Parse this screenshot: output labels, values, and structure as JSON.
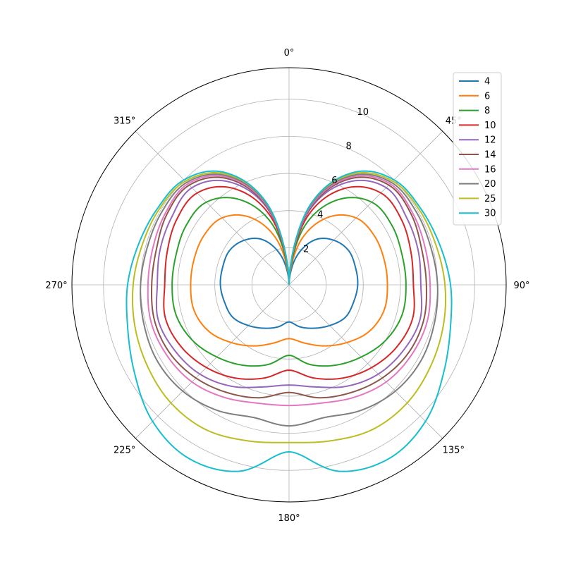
{
  "chart_data": {
    "type": "line",
    "projection": "polar",
    "theta_zero": "north",
    "theta_direction": "clockwise",
    "theta_ticks": [
      "0°",
      "45°",
      "90°",
      "135°",
      "180°",
      "225°",
      "270°",
      "315°"
    ],
    "r_ticks": [
      2,
      4,
      6,
      8,
      10
    ],
    "r_tick_labels": [
      "2",
      "4",
      "6",
      "8",
      "10"
    ],
    "rlim": [
      0,
      11.7
    ],
    "grid": true,
    "legend": {
      "placement": "top-right"
    },
    "theta": [
      0,
      15,
      30,
      45,
      60,
      75,
      90,
      105,
      120,
      135,
      150,
      165,
      180
    ],
    "series": [
      {
        "name": "4",
        "color": "#1f77b4",
        "r": [
          0,
          1.6,
          2.8,
          3.4,
          3.7,
          3.7,
          3.7,
          3.6,
          3.5,
          3.1,
          2.7,
          2.35,
          2.0
        ]
      },
      {
        "name": "6",
        "color": "#ff7f0e",
        "r": [
          0,
          2.5,
          4.2,
          5.1,
          5.3,
          5.3,
          5.3,
          5.3,
          5.0,
          4.4,
          3.8,
          3.25,
          2.9
        ]
      },
      {
        "name": "8",
        "color": "#2ca02c",
        "r": [
          0,
          3.3,
          5.3,
          6.3,
          6.4,
          6.3,
          6.3,
          6.3,
          6.0,
          5.5,
          5.0,
          4.45,
          3.8
        ]
      },
      {
        "name": "10",
        "color": "#d62728",
        "r": [
          0,
          3.8,
          6.0,
          7.0,
          7.0,
          6.8,
          6.7,
          6.9,
          6.7,
          6.3,
          5.8,
          5.2,
          4.6
        ]
      },
      {
        "name": "12",
        "color": "#9467bd",
        "r": [
          0,
          4.1,
          6.4,
          7.4,
          7.3,
          7.2,
          7.1,
          7.3,
          7.1,
          6.8,
          6.3,
          5.7,
          5.4
        ]
      },
      {
        "name": "14",
        "color": "#8c564b",
        "r": [
          0,
          4.2,
          6.6,
          7.6,
          7.6,
          7.4,
          7.4,
          7.5,
          7.4,
          7.1,
          6.7,
          6.3,
          5.8
        ]
      },
      {
        "name": "16",
        "color": "#e377c2",
        "r": [
          0,
          4.3,
          6.7,
          7.7,
          7.7,
          7.6,
          7.6,
          7.7,
          7.6,
          7.4,
          7.0,
          6.6,
          6.5
        ]
      },
      {
        "name": "20",
        "color": "#7f7f7f",
        "r": [
          0,
          4.4,
          6.8,
          7.8,
          7.9,
          7.9,
          8.0,
          8.1,
          8.2,
          8.1,
          7.8,
          7.4,
          7.6
        ]
      },
      {
        "name": "25",
        "color": "#bcbd22",
        "r": [
          0,
          4.5,
          6.9,
          7.9,
          8.1,
          8.2,
          8.4,
          8.6,
          8.8,
          9.0,
          9.0,
          8.7,
          8.5
        ]
      },
      {
        "name": "30",
        "color": "#17becf",
        "r": [
          0,
          4.5,
          7.0,
          8.0,
          8.2,
          8.4,
          8.7,
          9.0,
          9.6,
          10.4,
          10.8,
          10.4,
          9.0
        ]
      }
    ]
  }
}
